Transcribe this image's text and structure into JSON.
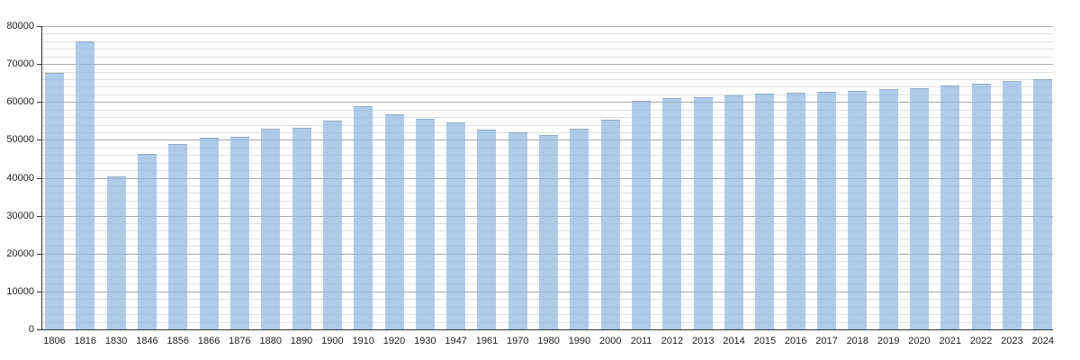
{
  "chart_data": {
    "type": "bar",
    "title": "",
    "xlabel": "",
    "ylabel": "",
    "legend": "none",
    "grid": "horizontal, major every 10000 and minor every 2000",
    "ylim": [
      0,
      80000
    ],
    "y_ticks": [
      0,
      10000,
      20000,
      30000,
      40000,
      50000,
      60000,
      70000,
      80000
    ],
    "y_tick_labels": [
      "0",
      "10000",
      "20000",
      "30000",
      "40000",
      "50000",
      "60000",
      "70000",
      "80000"
    ],
    "y_minor_step": 2000,
    "categories": [
      "1806",
      "1816",
      "1830",
      "1846",
      "1856",
      "1866",
      "1876",
      "1880",
      "1890",
      "1900",
      "1910",
      "1920",
      "1930",
      "1947",
      "1961",
      "1970",
      "1980",
      "1990",
      "2000",
      "2011",
      "2012",
      "2013",
      "2014",
      "2015",
      "2016",
      "2017",
      "2018",
      "2019",
      "2020",
      "2021",
      "2022",
      "2023",
      "2024"
    ],
    "values": [
      67700,
      76000,
      40300,
      46200,
      48900,
      50500,
      50900,
      52900,
      53200,
      55100,
      58800,
      56700,
      55600,
      54500,
      52700,
      52100,
      51200,
      53000,
      55300,
      60300,
      60900,
      61300,
      61700,
      62100,
      62400,
      62700,
      63000,
      63300,
      63700,
      64300,
      64900,
      65500,
      66000
    ],
    "colors": {
      "bar": "#aecbe9",
      "bar_fill_rgba": "rgba(147,186,226,0.75)",
      "grid_major": "#a8a8a8",
      "grid_minor": "#dfdfdf",
      "axis": "#333333",
      "text": "#202122"
    }
  }
}
